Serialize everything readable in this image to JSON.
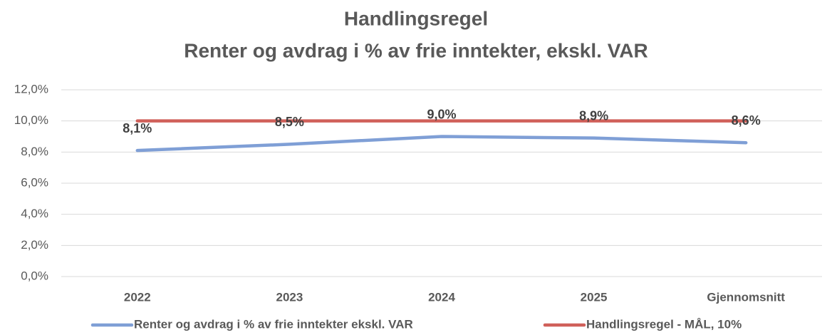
{
  "chart_data": {
    "type": "line",
    "title": "Handlingsregel",
    "subtitle": "Renter og avdrag i % av frie inntekter, ekskl. VAR",
    "categories": [
      "2022",
      "2023",
      "2024",
      "2025",
      "Gjennomsnitt"
    ],
    "series": [
      {
        "name": "Renter og avdrag i % av frie inntekter ekskl. VAR",
        "color": "#7f9fd6",
        "values": [
          8.1,
          8.5,
          9.0,
          8.9,
          8.6
        ],
        "value_labels": [
          "8,1%",
          "8,5%",
          "9,0%",
          "8,9%",
          "8,6%"
        ]
      },
      {
        "name": "Handlingsregel - MÅL, 10%",
        "color": "#d0605a",
        "values": [
          10,
          10,
          10,
          10,
          10
        ]
      }
    ],
    "ylim": [
      0,
      12
    ],
    "yticks": [
      {
        "value": 0,
        "label": "0,0%"
      },
      {
        "value": 2,
        "label": "2,0%"
      },
      {
        "value": 4,
        "label": "4,0%"
      },
      {
        "value": 6,
        "label": "6,0%"
      },
      {
        "value": 8,
        "label": "8,0%"
      },
      {
        "value": 10,
        "label": "10,0%"
      },
      {
        "value": 12,
        "label": "12,0%"
      }
    ],
    "grid": true,
    "legend": "bottom"
  }
}
